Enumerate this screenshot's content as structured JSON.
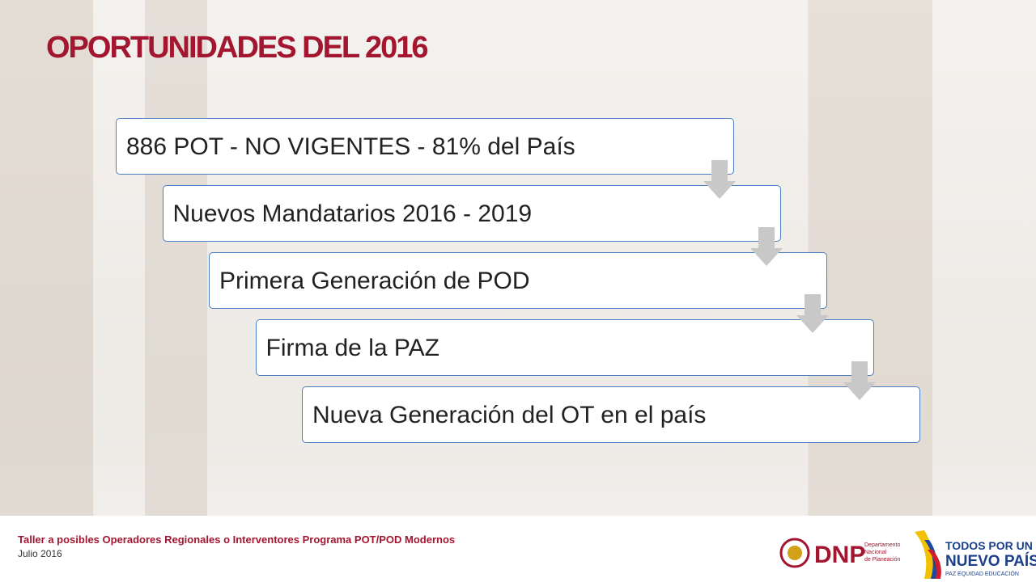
{
  "header": {
    "title": "OPORTUNIDADES DEL 2016"
  },
  "steps": [
    "886 POT - NO VIGENTES - 81% del País",
    "Nuevos Mandatarios 2016 - 2019",
    "Primera Generación de POD",
    "Firma de la PAZ",
    "Nueva Generación del OT en el país"
  ],
  "footer": {
    "line1": "Taller a posibles Operadores Regionales o Interventores Programa POT/POD Modernos",
    "line2": "Julio 2016",
    "dnp": "DNP",
    "dnp_sub": [
      "Departamento",
      "Nacional",
      "de Planeación"
    ],
    "slogan": [
      "TODOS POR UN",
      "NUEVO PAÍS"
    ],
    "slogan_sub": "PAZ  EQUIDAD  EDUCACIÓN"
  }
}
